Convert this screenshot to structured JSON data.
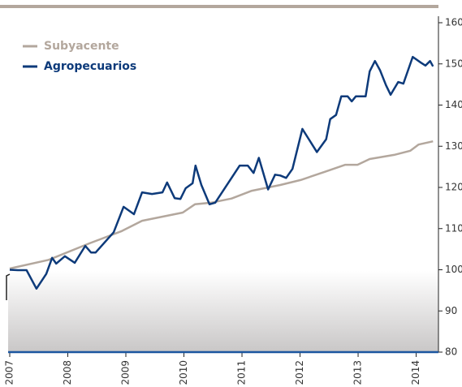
{
  "chart_data": {
    "type": "line",
    "series": [
      {
        "name": "Subyacente",
        "color": "#b3a79d",
        "x": [
          2007.0,
          2007.67,
          2008.37,
          2008.93,
          2009.28,
          2009.98,
          2010.19,
          2010.47,
          2010.82,
          2011.17,
          2011.66,
          2012.01,
          2012.43,
          2012.78,
          2012.99,
          2013.2,
          2013.62,
          2013.9,
          2014.04,
          2014.29
        ],
        "values": [
          100.3,
          102.4,
          106.4,
          109.4,
          111.9,
          113.9,
          115.9,
          116.3,
          117.3,
          119.2,
          120.6,
          121.8,
          123.8,
          125.5,
          125.5,
          126.9,
          127.9,
          128.9,
          130.4,
          131.2
        ]
      },
      {
        "name": "Agropecuarios",
        "color": "#0d3a7a",
        "x": [
          2007.0,
          2007.14,
          2007.29,
          2007.46,
          2007.63,
          2007.73,
          2007.8,
          2007.95,
          2008.12,
          2008.3,
          2008.4,
          2008.48,
          2008.79,
          2008.96,
          2009.14,
          2009.28,
          2009.45,
          2009.63,
          2009.71,
          2009.84,
          2009.94,
          2010.03,
          2010.15,
          2010.2,
          2010.3,
          2010.44,
          2010.54,
          2010.96,
          2011.1,
          2011.2,
          2011.29,
          2011.45,
          2011.57,
          2011.66,
          2011.76,
          2011.87,
          2012.04,
          2012.29,
          2012.45,
          2012.52,
          2012.62,
          2012.71,
          2012.82,
          2012.89,
          2012.96,
          2013.13,
          2013.2,
          2013.29,
          2013.38,
          2013.48,
          2013.56,
          2013.69,
          2013.78,
          2013.94,
          2014.08,
          2014.16,
          2014.24,
          2014.29
        ],
        "values": [
          100.0,
          99.9,
          99.9,
          95.4,
          99.0,
          102.9,
          101.5,
          103.3,
          101.7,
          105.8,
          104.2,
          104.2,
          109.1,
          115.3,
          113.5,
          118.8,
          118.4,
          118.8,
          121.2,
          117.4,
          117.2,
          119.8,
          121.0,
          125.3,
          120.6,
          115.9,
          116.3,
          125.3,
          125.3,
          123.5,
          127.2,
          119.5,
          123.1,
          122.9,
          122.3,
          124.5,
          134.2,
          128.6,
          131.7,
          136.6,
          137.6,
          142.1,
          142.1,
          140.9,
          142.1,
          142.1,
          148.2,
          150.7,
          148.4,
          144.8,
          142.5,
          145.6,
          145.2,
          151.7,
          150.3,
          149.6,
          150.7,
          149.4
        ]
      }
    ],
    "xlim": [
      2007,
      2014.3
    ],
    "xticks": [
      2007,
      2008,
      2009,
      2010,
      2011,
      2012,
      2013,
      2014
    ],
    "ylim": [
      80,
      160
    ],
    "yticks": [
      80,
      90,
      100,
      110,
      120,
      130,
      140,
      150,
      160
    ]
  }
}
